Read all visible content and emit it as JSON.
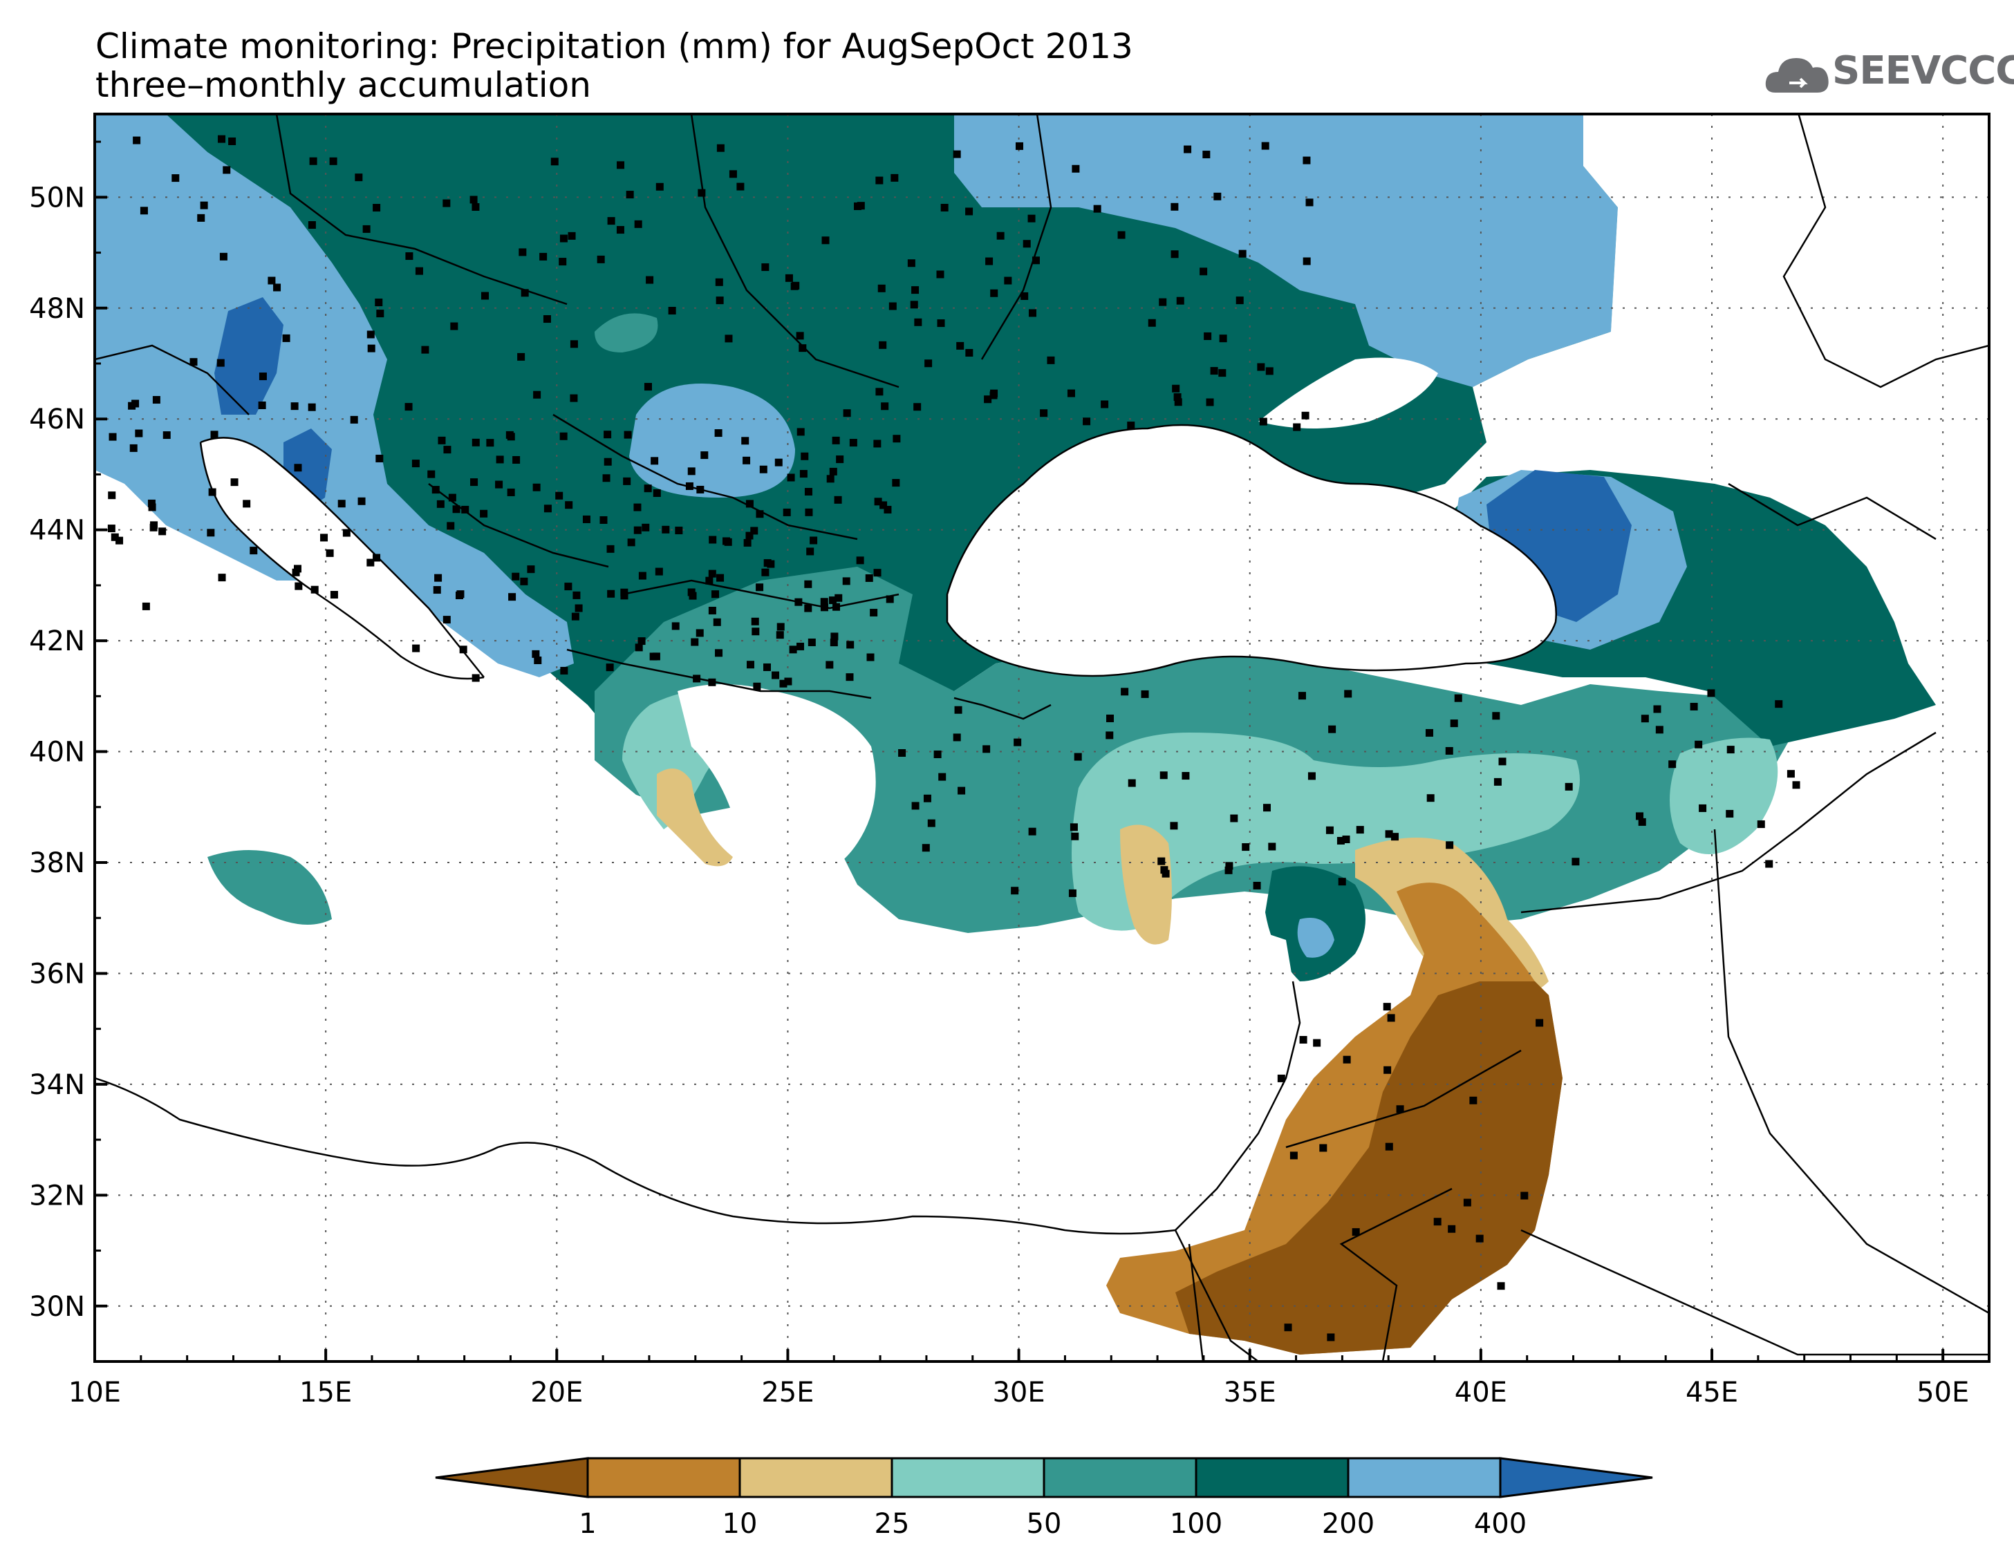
{
  "title": "Climate monitoring: Precipitation (mm) for AugSepOct 2013",
  "subtitle": "three–monthly accumulation",
  "logo": {
    "text": "SEEVCCC",
    "icon": "cloud-icon"
  },
  "map": {
    "lon_range": [
      10,
      51
    ],
    "lat_range": [
      29,
      51.5
    ],
    "lon_ticks": [
      "10E",
      "15E",
      "20E",
      "25E",
      "30E",
      "35E",
      "40E",
      "45E",
      "50E"
    ],
    "lat_ticks": [
      "30N",
      "32N",
      "34N",
      "36N",
      "38N",
      "40N",
      "42N",
      "44N",
      "46N",
      "48N",
      "50N"
    ],
    "grid": true,
    "station_markers": true
  },
  "colorbar": {
    "labels": [
      "1",
      "10",
      "25",
      "50",
      "100",
      "200",
      "400"
    ],
    "colors": [
      "#8c5410",
      "#bf812d",
      "#dfc27d",
      "#80cdc1",
      "#35978f",
      "#01665e",
      "#6baed6",
      "#2166ac"
    ],
    "extend": "both"
  }
}
